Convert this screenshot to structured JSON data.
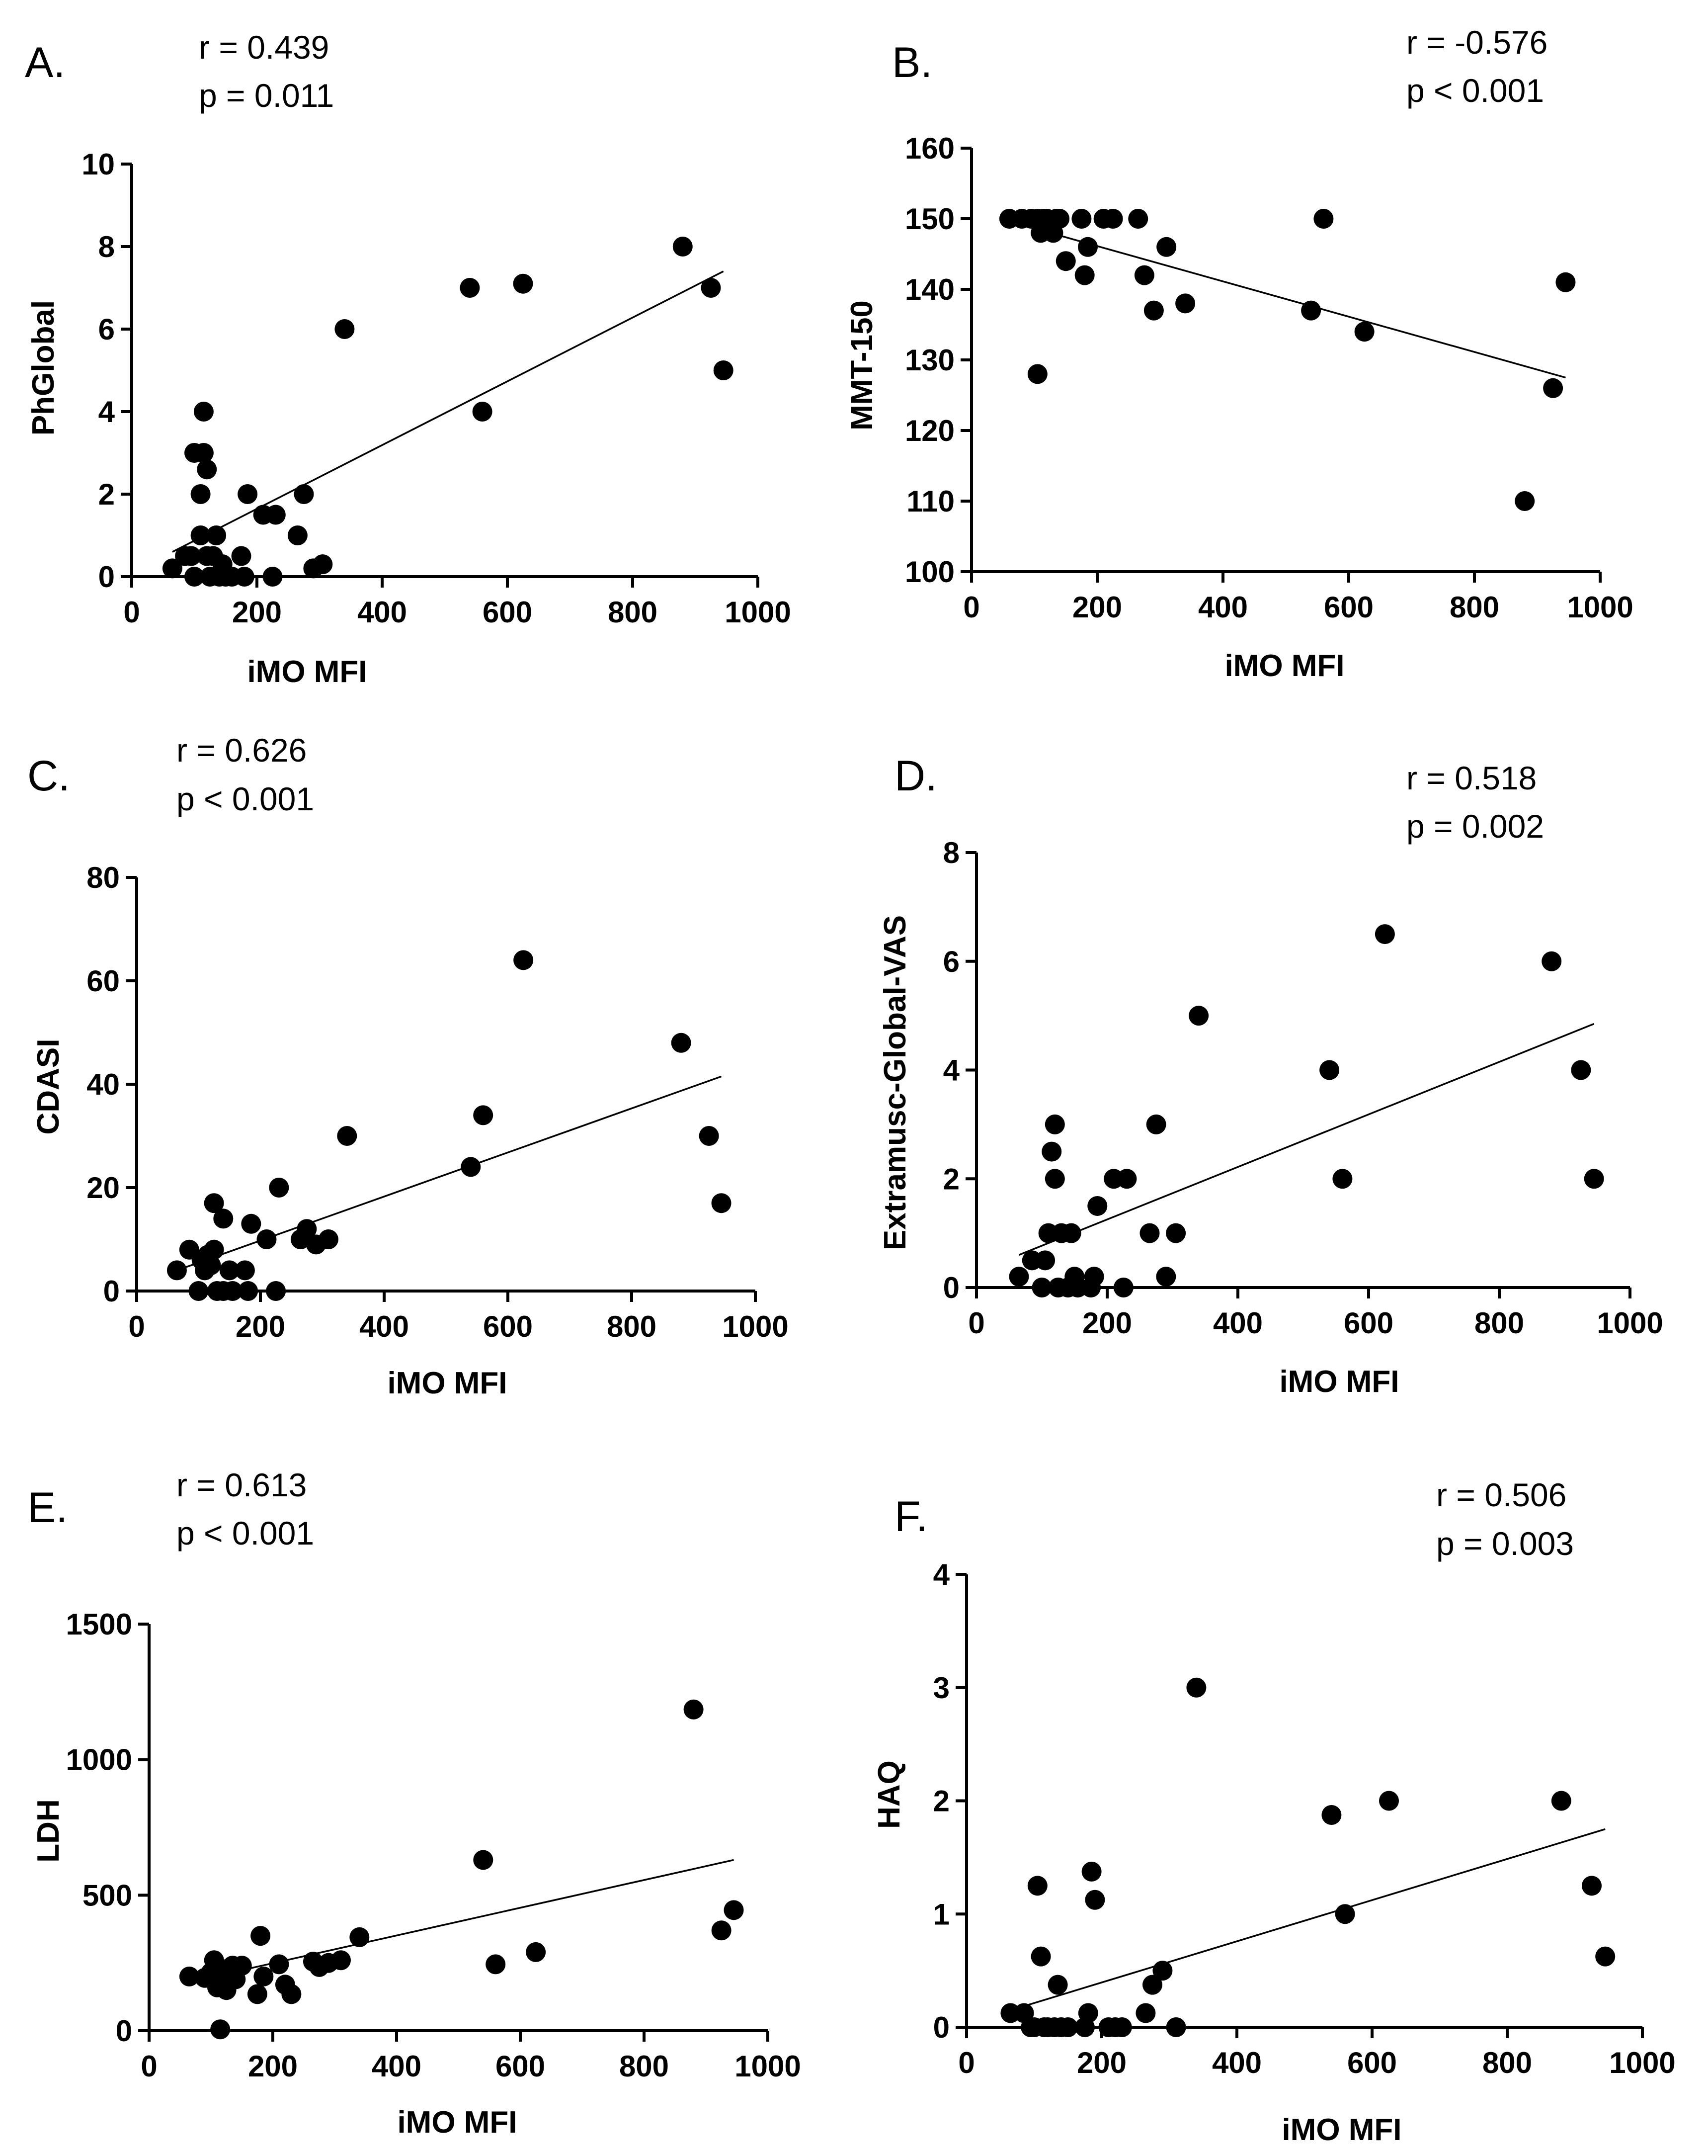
{
  "chart_data": [
    {
      "type": "scatter",
      "panel": "A.",
      "r_text": "r = 0.439",
      "p_text": "p = 0.011",
      "xlabel": "iMO MFI",
      "ylabel": "PhGlobal",
      "xlim": [
        0,
        1000
      ],
      "ylim": [
        0,
        10
      ],
      "xticks": [
        0,
        200,
        400,
        600,
        800,
        1000
      ],
      "yticks": [
        0,
        2,
        4,
        6,
        8,
        10
      ],
      "trendline": {
        "x": [
          65,
          945
        ],
        "y": [
          0.6,
          7.4
        ]
      },
      "points": [
        [
          65,
          0.2
        ],
        [
          85,
          0.5
        ],
        [
          95,
          0.5
        ],
        [
          100,
          0
        ],
        [
          100,
          3
        ],
        [
          110,
          1
        ],
        [
          110,
          2
        ],
        [
          115,
          3
        ],
        [
          115,
          4
        ],
        [
          120,
          0.5
        ],
        [
          120,
          2.6
        ],
        [
          125,
          0
        ],
        [
          130,
          0.5
        ],
        [
          135,
          1
        ],
        [
          140,
          0
        ],
        [
          145,
          0.3
        ],
        [
          150,
          0
        ],
        [
          160,
          0
        ],
        [
          175,
          0.5
        ],
        [
          180,
          0
        ],
        [
          185,
          2
        ],
        [
          210,
          1.5
        ],
        [
          225,
          0
        ],
        [
          230,
          1.5
        ],
        [
          265,
          1
        ],
        [
          275,
          2
        ],
        [
          290,
          0.2
        ],
        [
          305,
          0.3
        ],
        [
          340,
          6
        ],
        [
          540,
          7
        ],
        [
          560,
          4
        ],
        [
          625,
          7.1
        ],
        [
          880,
          8
        ],
        [
          925,
          7
        ],
        [
          945,
          5
        ]
      ]
    },
    {
      "type": "scatter",
      "panel": "B.",
      "r_text": "r = -0.576",
      "p_text": "p < 0.001",
      "xlabel": "iMO MFI",
      "ylabel": "MMT-150",
      "xlim": [
        0,
        1000
      ],
      "ylim": [
        100,
        160
      ],
      "xticks": [
        0,
        200,
        400,
        600,
        800,
        1000
      ],
      "yticks": [
        100,
        110,
        120,
        130,
        140,
        150,
        160
      ],
      "trendline": {
        "x": [
          65,
          945
        ],
        "y": [
          149.5,
          127.5
        ]
      },
      "points": [
        [
          60,
          150
        ],
        [
          80,
          150
        ],
        [
          95,
          150
        ],
        [
          105,
          150
        ],
        [
          105,
          128
        ],
        [
          110,
          148
        ],
        [
          115,
          150
        ],
        [
          120,
          150
        ],
        [
          125,
          149
        ],
        [
          130,
          148
        ],
        [
          135,
          150
        ],
        [
          140,
          150
        ],
        [
          150,
          144
        ],
        [
          175,
          150
        ],
        [
          180,
          142
        ],
        [
          185,
          146
        ],
        [
          210,
          150
        ],
        [
          225,
          150
        ],
        [
          265,
          150
        ],
        [
          275,
          142
        ],
        [
          290,
          137
        ],
        [
          310,
          146
        ],
        [
          340,
          138
        ],
        [
          540,
          137
        ],
        [
          560,
          150
        ],
        [
          625,
          134
        ],
        [
          880,
          110
        ],
        [
          925,
          126
        ],
        [
          945,
          141
        ]
      ]
    },
    {
      "type": "scatter",
      "panel": "C.",
      "r_text": "r = 0.626",
      "p_text": "p < 0.001",
      "xlabel": "iMO MFI",
      "ylabel": "CDASI",
      "xlim": [
        0,
        1000
      ],
      "ylim": [
        0,
        80
      ],
      "xticks": [
        0,
        200,
        400,
        600,
        800,
        1000
      ],
      "yticks": [
        0,
        20,
        40,
        60,
        80
      ],
      "trendline": {
        "x": [
          65,
          945
        ],
        "y": [
          4,
          41.5
        ]
      },
      "points": [
        [
          65,
          4
        ],
        [
          85,
          8
        ],
        [
          100,
          0
        ],
        [
          105,
          6
        ],
        [
          110,
          4
        ],
        [
          115,
          7
        ],
        [
          120,
          5
        ],
        [
          125,
          17
        ],
        [
          125,
          8
        ],
        [
          130,
          0
        ],
        [
          140,
          0
        ],
        [
          140,
          14
        ],
        [
          150,
          4
        ],
        [
          155,
          0
        ],
        [
          175,
          4
        ],
        [
          180,
          0
        ],
        [
          185,
          13
        ],
        [
          210,
          10
        ],
        [
          225,
          0
        ],
        [
          230,
          20
        ],
        [
          265,
          10
        ],
        [
          275,
          12
        ],
        [
          290,
          9
        ],
        [
          310,
          10
        ],
        [
          340,
          30
        ],
        [
          540,
          24
        ],
        [
          560,
          34
        ],
        [
          625,
          64
        ],
        [
          880,
          48
        ],
        [
          925,
          30
        ],
        [
          945,
          17
        ]
      ]
    },
    {
      "type": "scatter",
      "panel": "D.",
      "r_text": "r = 0.518",
      "p_text": "p = 0.002",
      "xlabel": "iMO MFI",
      "ylabel": "Extramusc-Global-VAS",
      "xlim": [
        0,
        1000
      ],
      "ylim": [
        0,
        8
      ],
      "xticks": [
        0,
        200,
        400,
        600,
        800,
        1000
      ],
      "yticks": [
        0,
        2,
        4,
        6,
        8
      ],
      "trendline": {
        "x": [
          65,
          945
        ],
        "y": [
          0.6,
          4.85
        ]
      },
      "points": [
        [
          65,
          0.2
        ],
        [
          85,
          0.5
        ],
        [
          100,
          0
        ],
        [
          105,
          0.5
        ],
        [
          110,
          1
        ],
        [
          115,
          2.5
        ],
        [
          120,
          2
        ],
        [
          120,
          3
        ],
        [
          125,
          0
        ],
        [
          130,
          1
        ],
        [
          140,
          0
        ],
        [
          145,
          1
        ],
        [
          150,
          0.2
        ],
        [
          155,
          0
        ],
        [
          175,
          0
        ],
        [
          180,
          0.2
        ],
        [
          185,
          1.5
        ],
        [
          210,
          2
        ],
        [
          225,
          0
        ],
        [
          230,
          2
        ],
        [
          265,
          1
        ],
        [
          275,
          3
        ],
        [
          290,
          0.2
        ],
        [
          305,
          1
        ],
        [
          340,
          5
        ],
        [
          540,
          4
        ],
        [
          560,
          2
        ],
        [
          625,
          6.5
        ],
        [
          880,
          6
        ],
        [
          925,
          4
        ],
        [
          945,
          2
        ]
      ]
    },
    {
      "type": "scatter",
      "panel": "E.",
      "r_text": "r = 0.613",
      "p_text": "p < 0.001",
      "xlabel": "iMO MFI",
      "ylabel": "LDH",
      "xlim": [
        0,
        1000
      ],
      "ylim": [
        0,
        1500
      ],
      "xticks": [
        0,
        200,
        400,
        600,
        800,
        1000
      ],
      "yticks": [
        0,
        500,
        1000,
        1500
      ],
      "trendline": {
        "x": [
          65,
          945
        ],
        "y": [
          180,
          630
        ]
      },
      "points": [
        [
          65,
          200
        ],
        [
          90,
          195
        ],
        [
          100,
          215
        ],
        [
          105,
          260
        ],
        [
          110,
          160
        ],
        [
          115,
          230
        ],
        [
          115,
          5
        ],
        [
          120,
          180
        ],
        [
          125,
          150
        ],
        [
          130,
          200
        ],
        [
          135,
          240
        ],
        [
          140,
          190
        ],
        [
          150,
          240
        ],
        [
          175,
          135
        ],
        [
          180,
          350
        ],
        [
          185,
          200
        ],
        [
          210,
          245
        ],
        [
          220,
          170
        ],
        [
          230,
          135
        ],
        [
          265,
          255
        ],
        [
          275,
          235
        ],
        [
          290,
          250
        ],
        [
          310,
          260
        ],
        [
          340,
          345
        ],
        [
          540,
          630
        ],
        [
          560,
          245
        ],
        [
          625,
          290
        ],
        [
          880,
          1185
        ],
        [
          925,
          370
        ],
        [
          945,
          445
        ]
      ]
    },
    {
      "type": "scatter",
      "panel": "F.",
      "r_text": "r = 0.506",
      "p_text": "p = 0.003",
      "xlabel": "iMO MFI",
      "ylabel": "HAQ",
      "xlim": [
        0,
        1000
      ],
      "ylim": [
        0,
        4
      ],
      "xticks": [
        0,
        200,
        400,
        600,
        800,
        1000
      ],
      "yticks": [
        0,
        1,
        2,
        3,
        4
      ],
      "trendline": {
        "x": [
          65,
          945
        ],
        "y": [
          0.15,
          1.75
        ]
      },
      "points": [
        [
          65,
          0.125
        ],
        [
          85,
          0.125
        ],
        [
          95,
          0
        ],
        [
          100,
          0
        ],
        [
          105,
          1.25
        ],
        [
          110,
          0.625
        ],
        [
          115,
          0
        ],
        [
          120,
          0
        ],
        [
          130,
          0
        ],
        [
          135,
          0.375
        ],
        [
          140,
          0
        ],
        [
          150,
          0
        ],
        [
          175,
          0
        ],
        [
          180,
          0.125
        ],
        [
          185,
          1.375
        ],
        [
          190,
          1.125
        ],
        [
          210,
          0
        ],
        [
          220,
          0
        ],
        [
          230,
          0
        ],
        [
          265,
          0.125
        ],
        [
          275,
          0.375
        ],
        [
          290,
          0.5
        ],
        [
          310,
          0
        ],
        [
          340,
          3
        ],
        [
          540,
          1.875
        ],
        [
          560,
          1
        ],
        [
          625,
          2
        ],
        [
          880,
          2
        ],
        [
          925,
          1.25
        ],
        [
          945,
          0.625
        ]
      ]
    }
  ]
}
